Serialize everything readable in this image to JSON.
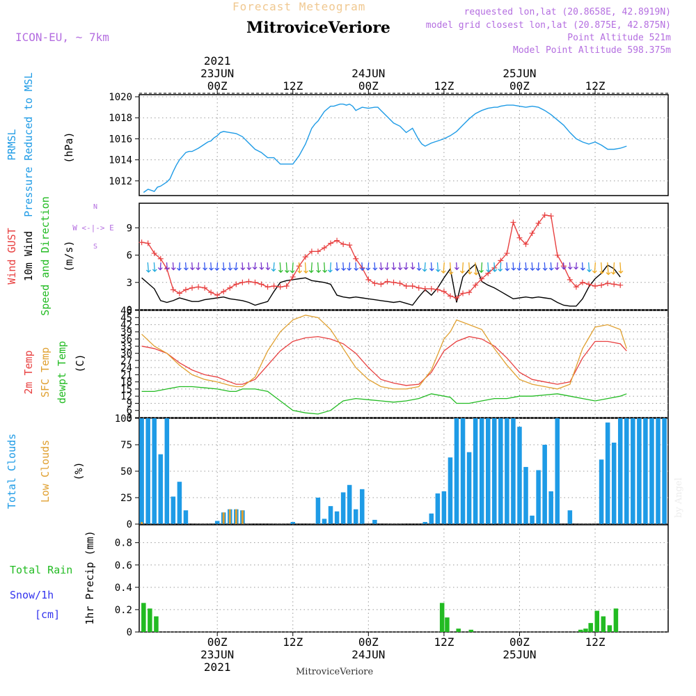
{
  "header": {
    "subtitle": "Forecast Meteogram",
    "location": "MitroviceVeriore",
    "model": "ICON-EU, ~ 7km",
    "requested": "requested lon,lat (20.8658E, 42.8919N)",
    "closest": "model grid closest lon,lat (20.875E, 42.875N)",
    "point_altitude": "Point Altitude 521m",
    "model_altitude": "Model Point Altitude 598.375m"
  },
  "footer": {
    "location": "MitroviceVeriore",
    "credit": "by Angel"
  },
  "time_axis": {
    "top": [
      {
        "t": 12,
        "lines": [
          "2021",
          "23JUN",
          "00Z"
        ]
      },
      {
        "t": 24,
        "lines": [
          "12Z"
        ]
      },
      {
        "t": 36,
        "lines": [
          "24JUN",
          "00Z"
        ]
      },
      {
        "t": 48,
        "lines": [
          "12Z"
        ]
      },
      {
        "t": 60,
        "lines": [
          "25JUN",
          "00Z"
        ]
      },
      {
        "t": 72,
        "lines": [
          "12Z"
        ]
      }
    ],
    "bottom": [
      {
        "t": 12,
        "lines": [
          "00Z",
          "23JUN",
          "2021"
        ]
      },
      {
        "t": 24,
        "lines": [
          "12Z"
        ]
      },
      {
        "t": 36,
        "lines": [
          "00Z",
          "24JUN"
        ]
      },
      {
        "t": 48,
        "lines": [
          "12Z"
        ]
      },
      {
        "t": 60,
        "lines": [
          "00Z",
          "25JUN"
        ]
      },
      {
        "t": 72,
        "lines": [
          "12Z"
        ]
      }
    ]
  },
  "colors": {
    "pressure": "#1e9be6",
    "gust": "#e84040",
    "wind": "#000000",
    "dir": "#22bb22",
    "temp2m": "#e84040",
    "sfc": "#e0a030",
    "dewpt": "#22bb22",
    "total_cloud": "#1e9be6",
    "low_cloud": "#e0a030",
    "rain": "#22bb22",
    "snow": "#3333ee",
    "compass": "#b46ee0"
  },
  "chart_data": [
    {
      "type": "line",
      "panel": "pressure",
      "labels": [
        "PRMSL",
        "Pressure Reduced to MSL"
      ],
      "unit": "(hPa)",
      "ylim": [
        1010.6,
        1020.2
      ],
      "yticks": [
        1012,
        1014,
        1016,
        1018,
        1020
      ],
      "x": [
        0.3,
        1,
        1.5,
        2,
        2.5,
        3,
        4,
        4.5,
        5,
        5.5,
        6,
        7,
        7.5,
        8,
        9,
        9.5,
        10,
        10.5,
        11,
        11.5,
        12,
        12.5,
        13,
        14,
        15,
        16,
        17,
        18,
        19,
        20,
        21,
        22,
        23,
        23.5,
        24,
        25,
        26,
        27,
        27.5,
        28,
        29,
        30,
        30.5,
        31,
        31.5,
        32,
        32.5,
        33,
        33.5,
        34,
        35,
        36,
        37,
        37.5,
        38,
        39,
        40,
        41,
        42,
        43,
        44,
        44.5,
        45,
        46,
        46.5,
        47,
        48,
        49,
        50,
        51,
        52,
        53,
        54,
        55,
        56,
        56.5,
        57,
        58,
        59,
        60,
        61,
        62,
        63,
        64,
        65,
        66,
        67,
        68,
        69,
        70,
        71,
        72,
        73,
        74,
        75,
        76,
        77
      ],
      "y": [
        1010.9,
        1011.2,
        1011.1,
        1011.0,
        1011.4,
        1011.5,
        1011.9,
        1012.2,
        1012.9,
        1013.5,
        1014.0,
        1014.7,
        1014.8,
        1014.8,
        1015.1,
        1015.3,
        1015.5,
        1015.7,
        1015.8,
        1016.1,
        1016.3,
        1016.6,
        1016.7,
        1016.6,
        1016.5,
        1016.2,
        1015.6,
        1015.0,
        1014.7,
        1014.2,
        1014.2,
        1013.6,
        1013.6,
        1013.6,
        1013.6,
        1014.4,
        1015.5,
        1017.0,
        1017.4,
        1017.7,
        1018.6,
        1019.1,
        1019.1,
        1019.2,
        1019.3,
        1019.3,
        1019.2,
        1019.3,
        1019.1,
        1018.7,
        1019.0,
        1018.9,
        1019.0,
        1019.0,
        1018.7,
        1018.1,
        1017.5,
        1017.2,
        1016.6,
        1017.0,
        1015.9,
        1015.5,
        1015.3,
        1015.6,
        1015.7,
        1015.8,
        1016.0,
        1016.3,
        1016.7,
        1017.3,
        1017.9,
        1018.4,
        1018.7,
        1018.9,
        1019.0,
        1019.0,
        1019.1,
        1019.2,
        1019.2,
        1019.1,
        1019.0,
        1019.1,
        1019.0,
        1018.7,
        1018.3,
        1017.8,
        1017.3,
        1016.6,
        1016.0,
        1015.7,
        1015.5,
        1015.7,
        1015.4,
        1015.0,
        1015.0,
        1015.1,
        1015.3
      ]
    },
    {
      "type": "line",
      "panel": "wind",
      "labels": [
        "Wind GUST",
        "10m Wind",
        "Speed and Direction"
      ],
      "unit": "(m/s)",
      "compass": [
        "N",
        "W <-|-> E",
        "S"
      ],
      "ylim": [
        0,
        11.7
      ],
      "yticks": [
        0,
        3,
        6,
        9
      ],
      "x": [
        0,
        1,
        2,
        3,
        4,
        5,
        6,
        7,
        8,
        9,
        10,
        11,
        12,
        13,
        14,
        15,
        16,
        17,
        18,
        19,
        20,
        21,
        22,
        23,
        24,
        25,
        26,
        27,
        28,
        29,
        30,
        31,
        32,
        33,
        34,
        35,
        36,
        37,
        38,
        39,
        40,
        41,
        42,
        43,
        44,
        45,
        46,
        47,
        48,
        49,
        50,
        51,
        52,
        53,
        54,
        55,
        56,
        57,
        58,
        59,
        60,
        61,
        62,
        63,
        64,
        65,
        66,
        67,
        68,
        69,
        70,
        71,
        72,
        73,
        74,
        75,
        76
      ],
      "series": [
        {
          "name": "Wind GUST",
          "values": [
            7.4,
            7.3,
            6.2,
            5.6,
            4.5,
            2.2,
            1.8,
            2.2,
            2.4,
            2.5,
            2.4,
            1.9,
            1.6,
            2.0,
            2.4,
            2.8,
            3.0,
            3.1,
            3.0,
            2.8,
            2.5,
            2.6,
            2.5,
            2.6,
            3.6,
            4.8,
            5.8,
            6.4,
            6.4,
            6.8,
            7.3,
            7.6,
            7.2,
            7.1,
            5.6,
            4.6,
            3.3,
            2.9,
            2.8,
            3.1,
            3.0,
            2.9,
            2.6,
            2.6,
            2.4,
            2.3,
            2.3,
            2.2,
            2.0,
            1.5,
            1.3,
            1.8,
            1.9,
            2.7,
            3.4,
            4.0,
            4.6,
            5.4,
            6.2,
            9.6,
            7.9,
            7.2,
            8.4,
            9.5,
            10.4,
            10.3,
            6.0,
            4.8,
            3.3,
            2.5,
            3.0,
            2.8,
            2.6,
            2.7,
            2.9,
            2.8,
            2.7
          ]
        },
        {
          "name": "10m Wind",
          "values": [
            3.5,
            2.9,
            2.3,
            1.0,
            0.8,
            1.0,
            1.3,
            1.1,
            0.9,
            0.9,
            1.1,
            1.2,
            1.3,
            1.4,
            1.2,
            1.1,
            1.0,
            0.8,
            0.5,
            0.7,
            0.9,
            2.0,
            3.0,
            3.2,
            3.3,
            3.4,
            3.5,
            3.2,
            3.1,
            3.0,
            2.8,
            1.6,
            1.4,
            1.3,
            1.4,
            1.3,
            1.2,
            1.1,
            1.0,
            0.9,
            0.8,
            0.9,
            0.7,
            0.5,
            1.4,
            2.2,
            1.6,
            2.4,
            3.5,
            4.5,
            0.8,
            3.6,
            4.4,
            5.0,
            3.1,
            2.7,
            2.4,
            2.0,
            1.6,
            1.2,
            1.3,
            1.4,
            1.3,
            1.4,
            1.3,
            1.2,
            0.8,
            0.5,
            0.4,
            0.4,
            1.2,
            2.5,
            3.4,
            4.0,
            4.9,
            4.5,
            3.6
          ]
        }
      ]
    },
    {
      "type": "line",
      "panel": "temperature",
      "labels": [
        "2m Temp",
        "SFC Temp",
        "dewpt Temp"
      ],
      "unit": "(C)",
      "ylim": [
        3,
        48
      ],
      "yticks": [
        3,
        6,
        9,
        12,
        15,
        18,
        21,
        24,
        27,
        30,
        33,
        36,
        39,
        42,
        45,
        48
      ],
      "x": [
        0,
        2,
        4,
        6,
        8,
        10,
        12,
        14,
        15,
        16,
        18,
        20,
        22,
        24,
        26,
        28,
        30,
        32,
        34,
        36,
        38,
        40,
        42,
        44,
        46,
        48,
        49,
        50,
        52,
        54,
        56,
        58,
        60,
        62,
        64,
        66,
        68,
        70,
        72,
        74,
        76,
        77
      ],
      "series": [
        {
          "name": "2m Temp",
          "values": [
            33,
            32,
            30,
            26,
            23,
            21,
            20,
            18,
            17,
            17,
            19,
            25,
            31,
            35,
            36.5,
            37,
            36,
            34,
            30,
            24,
            19,
            17.5,
            16.5,
            17,
            22,
            31,
            33,
            35,
            37,
            36,
            33,
            28,
            22,
            19,
            18,
            17,
            18,
            28,
            35,
            35,
            34,
            31
          ]
        },
        {
          "name": "SFC Temp",
          "values": [
            38,
            33,
            30,
            25,
            21,
            19,
            18,
            16.5,
            16,
            16,
            20,
            31,
            39,
            44,
            46,
            45,
            40,
            32,
            24,
            19,
            16,
            15,
            15,
            16,
            23,
            36,
            39,
            44,
            42,
            40,
            32,
            25,
            19,
            17,
            16,
            15,
            17,
            32,
            41,
            42,
            40,
            32
          ]
        },
        {
          "name": "dewpt Temp",
          "values": [
            14,
            14,
            15,
            16,
            16,
            15.5,
            15,
            14,
            14,
            15,
            15,
            14,
            10,
            6,
            5,
            4.5,
            6,
            10,
            11,
            10.5,
            10,
            9.5,
            10,
            11,
            13,
            12,
            11.5,
            9,
            9,
            10,
            11,
            11,
            12,
            12,
            12.5,
            13,
            12,
            11,
            10,
            11,
            12,
            13
          ]
        }
      ]
    },
    {
      "type": "bar",
      "panel": "clouds",
      "labels": [
        "Total Clouds",
        "Low Clouds"
      ],
      "unit": "(%)",
      "ylim": [
        0,
        100
      ],
      "yticks": [
        0,
        25,
        50,
        75,
        100
      ],
      "x": [
        0,
        1,
        2,
        3,
        4,
        5,
        6,
        7,
        8,
        9,
        10,
        11,
        12,
        13,
        14,
        15,
        16,
        17,
        18,
        19,
        20,
        21,
        22,
        23,
        24,
        25,
        26,
        27,
        28,
        29,
        30,
        31,
        32,
        33,
        34,
        35,
        36,
        37,
        38,
        39,
        40,
        41,
        42,
        43,
        44,
        45,
        46,
        47,
        48,
        49,
        50,
        51,
        52,
        53,
        54,
        55,
        56,
        57,
        58,
        59,
        60,
        61,
        62,
        63,
        64,
        65,
        66,
        67,
        68,
        69,
        70,
        71,
        72,
        73,
        74,
        75,
        76
      ],
      "series": [
        {
          "name": "Total Clouds",
          "values": [
            100,
            100,
            100,
            66,
            100,
            26,
            40,
            13,
            0,
            0,
            0,
            0,
            3,
            11,
            14,
            14,
            13,
            0,
            0,
            0,
            0,
            0,
            0,
            0,
            2,
            0,
            0,
            0,
            25,
            5,
            17,
            12,
            30,
            37,
            14,
            33,
            0,
            4,
            0,
            0,
            0,
            0,
            0,
            0,
            0,
            2,
            10,
            29,
            31,
            63,
            100,
            100,
            68,
            100,
            100,
            100,
            100,
            100,
            100,
            100,
            92,
            54,
            8,
            51,
            75,
            31,
            100,
            0,
            13,
            0,
            0,
            0,
            0,
            61,
            96,
            77,
            100
          ]
        },
        {
          "name": "Low Clouds",
          "values": [
            2,
            0,
            0,
            0,
            0,
            0,
            0,
            0,
            0,
            0,
            0,
            0,
            0,
            11,
            14,
            14,
            13,
            0,
            0,
            0,
            0,
            0,
            0,
            0,
            0,
            0,
            0,
            0,
            0,
            0,
            0,
            0,
            0,
            0,
            0,
            0,
            0,
            0,
            0,
            0,
            0,
            0,
            0,
            0,
            0,
            0,
            0,
            0,
            0,
            0,
            0,
            0,
            0,
            0,
            0,
            0,
            0,
            0,
            0,
            0,
            0,
            0,
            0,
            0,
            0,
            0,
            0,
            0,
            0,
            0,
            0,
            0,
            0,
            0,
            0,
            0,
            0
          ]
        }
      ],
      "tail_x": [
        77,
        78,
        79,
        80,
        81,
        82,
        83
      ],
      "tail_total": [
        100,
        100,
        100,
        100,
        100,
        100,
        100
      ]
    },
    {
      "type": "bar",
      "panel": "precip",
      "labels": [
        "Total  Rain",
        "Snow/1h",
        "[cm]"
      ],
      "unit": "1hr Precip (mm)",
      "ylim": [
        0,
        0.96
      ],
      "yticks": [
        0,
        0.2,
        0.4,
        0.6,
        0.8
      ],
      "x": [
        0.3,
        1.3,
        2.3,
        47.7,
        48.5,
        50.3,
        52.3,
        69.7,
        70.5,
        71.3,
        72.3,
        73.3,
        74.3,
        75.3
      ],
      "series": [
        {
          "name": "Total Rain",
          "values": [
            0.26,
            0.21,
            0.14,
            0.26,
            0.13,
            0.03,
            0.02,
            0.02,
            0.03,
            0.08,
            0.19,
            0.14,
            0.06,
            0.21
          ]
        }
      ]
    }
  ]
}
